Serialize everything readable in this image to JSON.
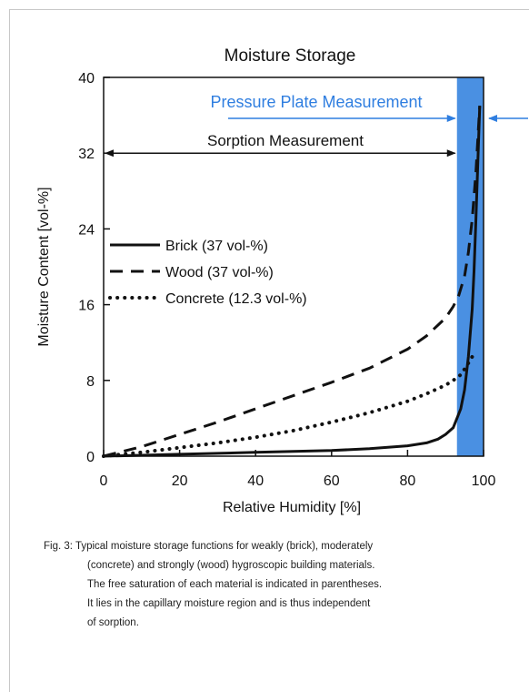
{
  "chart_data": {
    "type": "line",
    "title": "Moisture Storage",
    "xlabel": "Relative Humidity [%]",
    "ylabel": "Moisture Content [vol-%]",
    "xlim": [
      0,
      100
    ],
    "ylim": [
      0,
      40
    ],
    "xticks": [
      0,
      20,
      40,
      60,
      80,
      100
    ],
    "yticks": [
      0,
      8,
      16,
      24,
      32,
      40
    ],
    "grid": false,
    "legend_position": "middle-left",
    "series": [
      {
        "name": "Brick (37 vol-%)",
        "style": "solid",
        "x": [
          0,
          10,
          20,
          30,
          40,
          50,
          60,
          70,
          80,
          85,
          88,
          90,
          92,
          94,
          95,
          96,
          97,
          97.5,
          98,
          98.5,
          99
        ],
        "y": [
          0,
          0.1,
          0.2,
          0.3,
          0.4,
          0.5,
          0.6,
          0.8,
          1.1,
          1.4,
          1.8,
          2.3,
          3.0,
          5.0,
          7.0,
          10.5,
          15.5,
          19.5,
          25.0,
          31.0,
          37.0
        ]
      },
      {
        "name": "Wood (37 vol-%)",
        "style": "dashed",
        "x": [
          0,
          10,
          20,
          30,
          40,
          50,
          60,
          70,
          80,
          85,
          90,
          92,
          93.5,
          95,
          96,
          97,
          98,
          99
        ],
        "y": [
          0,
          1.0,
          2.3,
          3.6,
          5.0,
          6.4,
          7.8,
          9.3,
          11.3,
          12.7,
          14.6,
          15.8,
          17.0,
          19.0,
          21.5,
          25.0,
          30.0,
          37.0
        ]
      },
      {
        "name": "Concrete (12.3 vol-%)",
        "style": "dotted",
        "x": [
          0,
          10,
          20,
          30,
          40,
          50,
          60,
          70,
          80,
          85,
          90,
          92,
          94,
          95.5,
          97
        ],
        "y": [
          0,
          0.4,
          0.9,
          1.4,
          2.0,
          2.7,
          3.6,
          4.6,
          5.8,
          6.6,
          7.5,
          8.0,
          8.6,
          9.5,
          10.5
        ]
      }
    ],
    "annotations": {
      "sorption": {
        "label": "Sorption Measurement",
        "x_from": 0,
        "x_to": 93,
        "y": 32
      },
      "pressure_plate": {
        "label": "Pressure Plate Measurement",
        "x_from": 93,
        "x_to": 100,
        "y": 37,
        "band_x": [
          93,
          100
        ]
      }
    },
    "colors": {
      "band": "#4a90e2",
      "annotation": "#2f7ee0",
      "curve": "#111111"
    }
  },
  "caption": {
    "lines": [
      "Fig. 3: Typical moisture storage functions for weakly (brick), moderately",
      "(concrete) and strongly (wood) hygroscopic building materials.",
      "The free saturation of each material is indicated in parentheses.",
      "It lies in the capillary moisture region and is thus independent",
      "of sorption."
    ]
  }
}
